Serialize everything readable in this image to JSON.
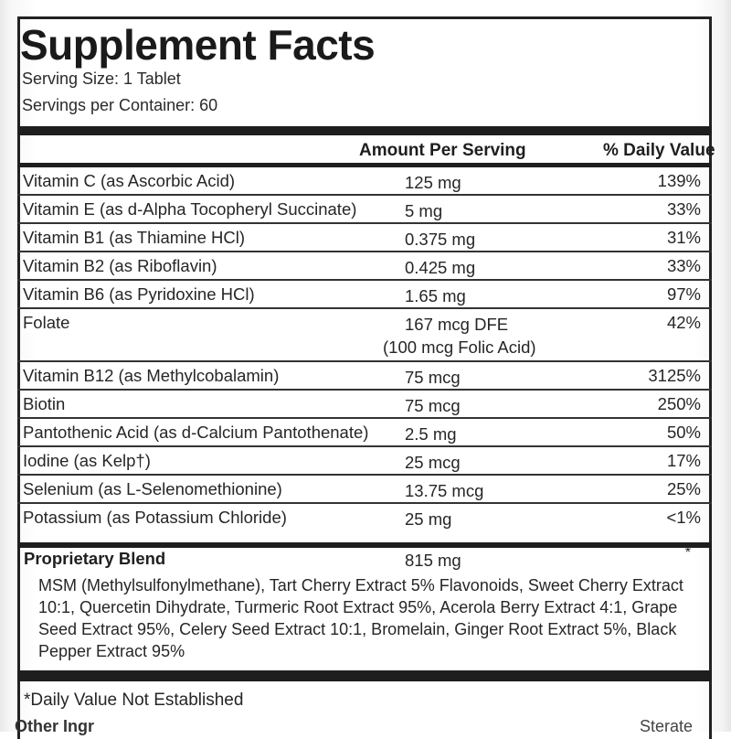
{
  "panel": {
    "title": "Supplement Facts",
    "serving_size": "Serving Size: 1 Tablet",
    "servings_per_container": "Servings per Container: 60",
    "col_amount": "Amount Per Serving",
    "col_dv": "% Daily Value"
  },
  "rows": [
    {
      "name": "Vitamin C (as Ascorbic Acid)",
      "amount": "125  mg",
      "dv": "139%"
    },
    {
      "name": "Vitamin E (as d-Alpha Tocopheryl Succinate)",
      "amount": "5  mg",
      "dv": "33%"
    },
    {
      "name": "Vitamin B1 (as Thiamine HCl)",
      "amount": "0.375  mg",
      "dv": "31%"
    },
    {
      "name": "Vitamin B2 (as Riboflavin)",
      "amount": "0.425  mg",
      "dv": "33%"
    },
    {
      "name": "Vitamin B6 (as Pyridoxine HCl)",
      "amount": "1.65  mg",
      "dv": "97%"
    },
    {
      "name": "Folate",
      "amount": "167  mcg  DFE",
      "sub": "(100 mcg Folic Acid)",
      "dv": "42%"
    },
    {
      "name": "Vitamin B12 (as Methylcobalamin)",
      "amount": "75  mcg",
      "dv": "3125%"
    },
    {
      "name": "Biotin",
      "amount": "75  mcg",
      "dv": "250%"
    },
    {
      "name": "Pantothenic Acid (as d-Calcium Pantothenate)",
      "amount": "2.5  mg",
      "dv": "50%"
    },
    {
      "name": "Iodine (as Kelp†)",
      "amount": "25  mcg",
      "dv": "17%"
    },
    {
      "name": "Selenium (as L-Selenomethionine)",
      "amount": "13.75  mcg",
      "dv": "25%"
    },
    {
      "name": "Potassium (as Potassium Chloride)",
      "amount": "25  mg",
      "dv": "<1%"
    }
  ],
  "blend": {
    "name": "Proprietary Blend",
    "amount": "815  mg",
    "dv": "*",
    "ingredients": "MSM (Methylsulfonylmethane), Tart Cherry Extract 5% Flavonoids, Sweet Cherry Extract 10:1, Quercetin Dihydrate, Turmeric Root Extract 95%, Acerola Berry Extract 4:1, Grape Seed Extract 95%, Celery Seed Extract 10:1, Bromelain, Ginger Root Extract 5%, Black Pepper Extract 95%"
  },
  "footnote": "*Daily Value Not Established",
  "other_ingredients_cut": "Other Ingr",
  "other_cut_right": "Sterate"
}
